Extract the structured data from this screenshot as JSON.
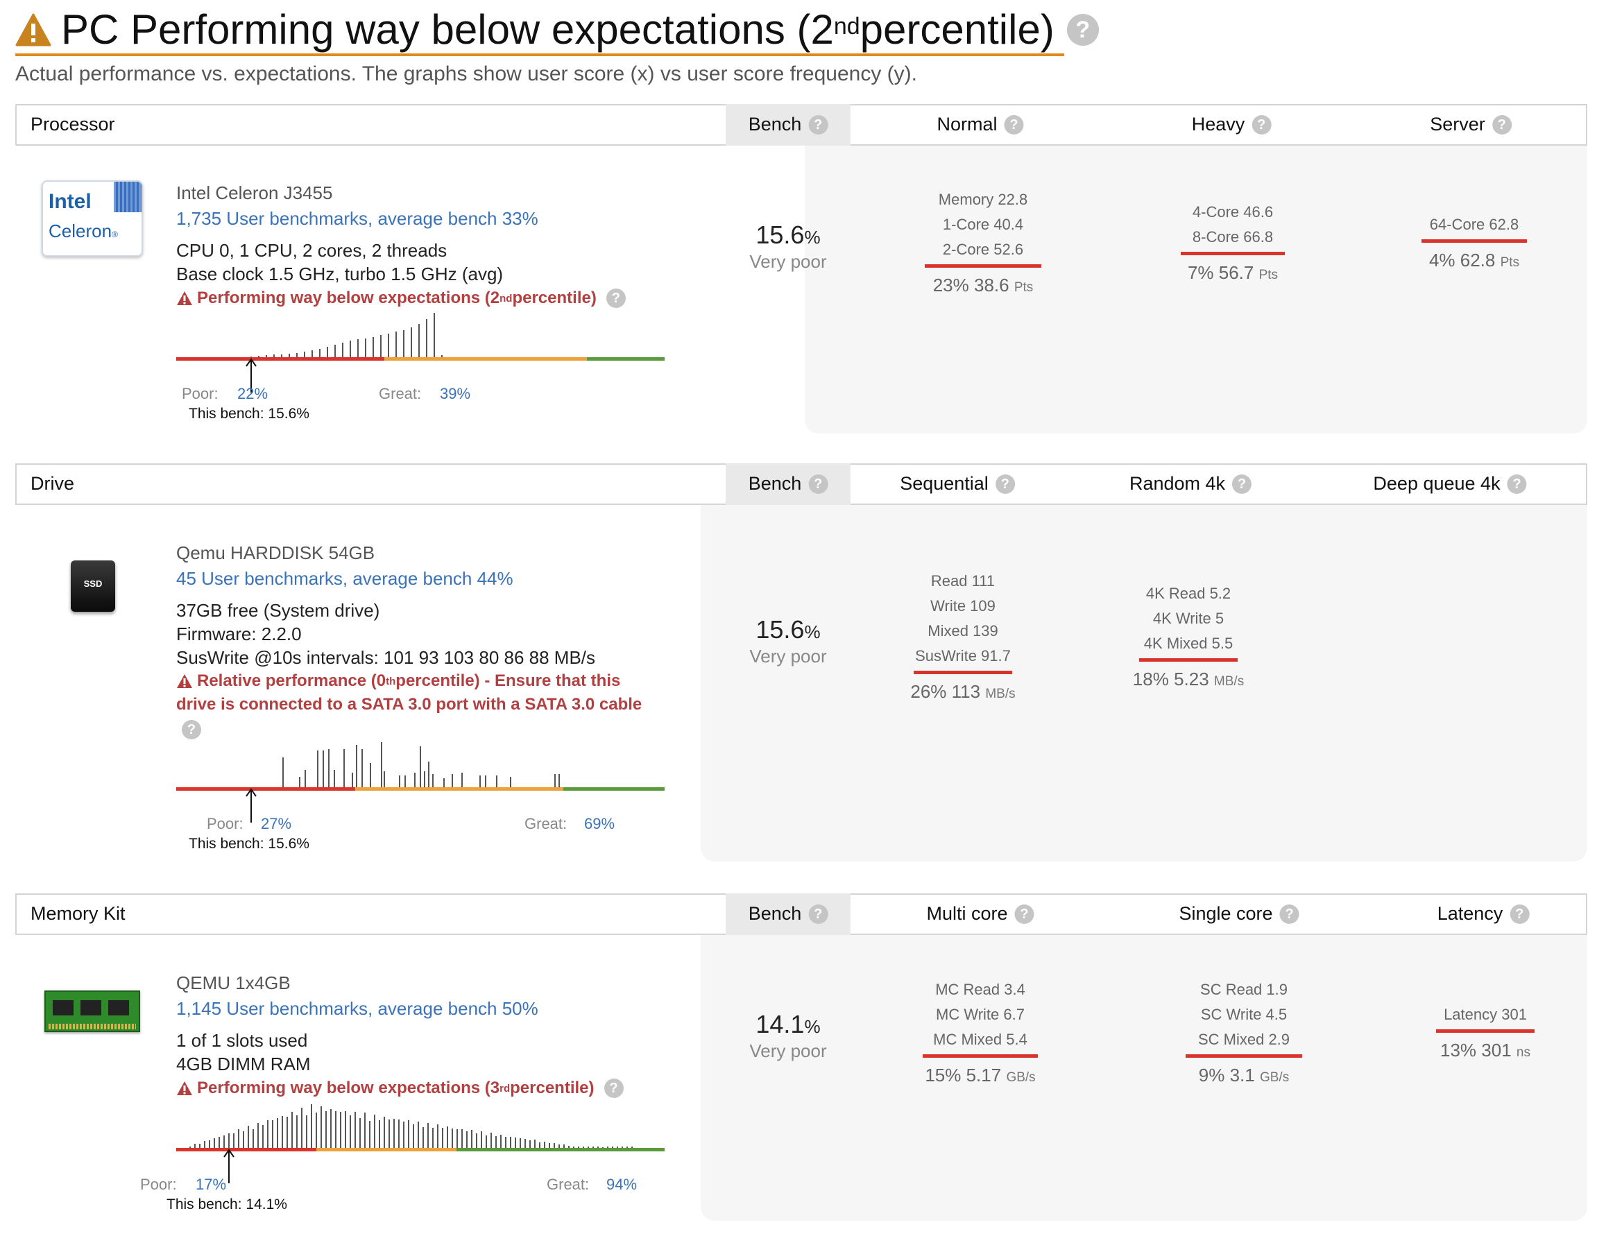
{
  "header": {
    "title_main": "PC Performing way below expectations (2",
    "title_sup": "nd",
    "title_end": " percentile)",
    "subtitle": "Actual performance vs. expectations. The graphs show user score (x) vs user score frequency (y).",
    "accent_color": "#e08a1e",
    "warning_icon": "warning-triangle-icon",
    "help_icon": "question-circle-icon"
  },
  "processor": {
    "section_label": "Processor",
    "bench_header": "Bench",
    "col1_header": "Normal",
    "col2_header": "Heavy",
    "col3_header": "Server",
    "logo_line1": "Intel",
    "logo_line2": "Celeron",
    "logo_reg": "®",
    "name": "Intel Celeron J3455",
    "benchmarks_link": "1,735 User benchmarks, average bench 33%",
    "line1": "CPU 0, 1 CPU, 2 cores, 2 threads",
    "line2": "Base clock 1.5 GHz, turbo 1.5 GHz (avg)",
    "warn_main": "Performing way below expectations (2",
    "warn_sup": "nd",
    "warn_end": " percentile)",
    "bench_value": "15.6",
    "bench_pct": "%",
    "bench_label": "Very poor",
    "col1_lines": [
      "Memory 22.8",
      "1-Core 40.4",
      "2-Core 52.6"
    ],
    "col1_score": "23% 38.6",
    "col1_unit": "Pts",
    "col2_lines": [
      "4-Core 46.6",
      "8-Core 66.8"
    ],
    "col2_score": "7% 56.7",
    "col2_unit": "Pts",
    "col3_lines": [
      "64-Core 62.8"
    ],
    "col3_score": "4% 62.8",
    "col3_unit": "Pts",
    "poor_label": "Poor:",
    "poor_pct": "22%",
    "great_label": "Great:",
    "great_pct": "39%",
    "this_bench": "This bench: 15.6%",
    "hist": {
      "bench": 15.6,
      "poor": 22,
      "great": 39,
      "heights": [
        1,
        1,
        2,
        3,
        4,
        5,
        5,
        6,
        7,
        9,
        11,
        13,
        16,
        19,
        22,
        25,
        27,
        28,
        30,
        33,
        35,
        38,
        40,
        44,
        49,
        56,
        65,
        4
      ]
    }
  },
  "drive": {
    "section_label": "Drive",
    "bench_header": "Bench",
    "col1_header": "Sequential",
    "col2_header": "Random 4k",
    "col3_header": "Deep queue 4k",
    "ssd_label": "SSD",
    "name": "Qemu HARDDISK 54GB",
    "benchmarks_link": "45 User benchmarks, average bench 44%",
    "line1": "37GB free (System drive)",
    "line2": "Firmware: 2.2.0",
    "line3": "SusWrite @10s intervals: 101 93 103 80 86 88 MB/s",
    "warn_main": "Relative performance (0",
    "warn_sup": "th",
    "warn_end": " percentile) - Ensure that this",
    "warn_line2": "drive is connected to a SATA 3.0 port with a SATA 3.0 cable",
    "bench_value": "15.6",
    "bench_pct": "%",
    "bench_label": "Very poor",
    "col1_lines": [
      "Read 111",
      "Write 109",
      "Mixed 139",
      "SusWrite 91.7"
    ],
    "col1_score": "26% 113",
    "col1_unit": "MB/s",
    "col2_lines": [
      "4K Read 5.2",
      "4K Write 5",
      "4K Mixed 5.5"
    ],
    "col2_score": "18% 5.23",
    "col2_unit": "MB/s",
    "poor_label": "Poor:",
    "poor_pct": "27%",
    "great_label": "Great:",
    "great_pct": "69%",
    "this_bench": "This bench: 15.6%"
  },
  "memory": {
    "section_label": "Memory Kit",
    "bench_header": "Bench",
    "col1_header": "Multi core",
    "col2_header": "Single core",
    "col3_header": "Latency",
    "name": "QEMU 1x4GB",
    "benchmarks_link": "1,145 User benchmarks, average bench 50%",
    "line1": "1 of 1 slots used",
    "line2": "4GB DIMM RAM",
    "warn_main": "Performing way below expectations (3",
    "warn_sup": "rd",
    "warn_end": " percentile)",
    "bench_value": "14.1",
    "bench_pct": "%",
    "bench_label": "Very poor",
    "col1_lines": [
      "MC Read 3.4",
      "MC Write 6.7",
      "MC Mixed 5.4"
    ],
    "col1_score": "15% 5.17",
    "col1_unit": "GB/s",
    "col2_lines": [
      "SC Read 1.9",
      "SC Write 4.5",
      "SC Mixed 2.9"
    ],
    "col2_score": "9% 3.1",
    "col2_unit": "GB/s",
    "col3_lines": [
      "Latency 301"
    ],
    "col3_score": "13% 301",
    "col3_unit": "ns",
    "poor_label": "Poor:",
    "poor_pct": "17%",
    "great_label": "Great:",
    "great_pct": "94%",
    "this_bench": "This bench: 14.1%"
  },
  "colors": {
    "poor": "#d9342b",
    "mid": "#eda13a",
    "great": "#5a9a3a",
    "link": "#3b73b9",
    "warn": "#b24040"
  }
}
